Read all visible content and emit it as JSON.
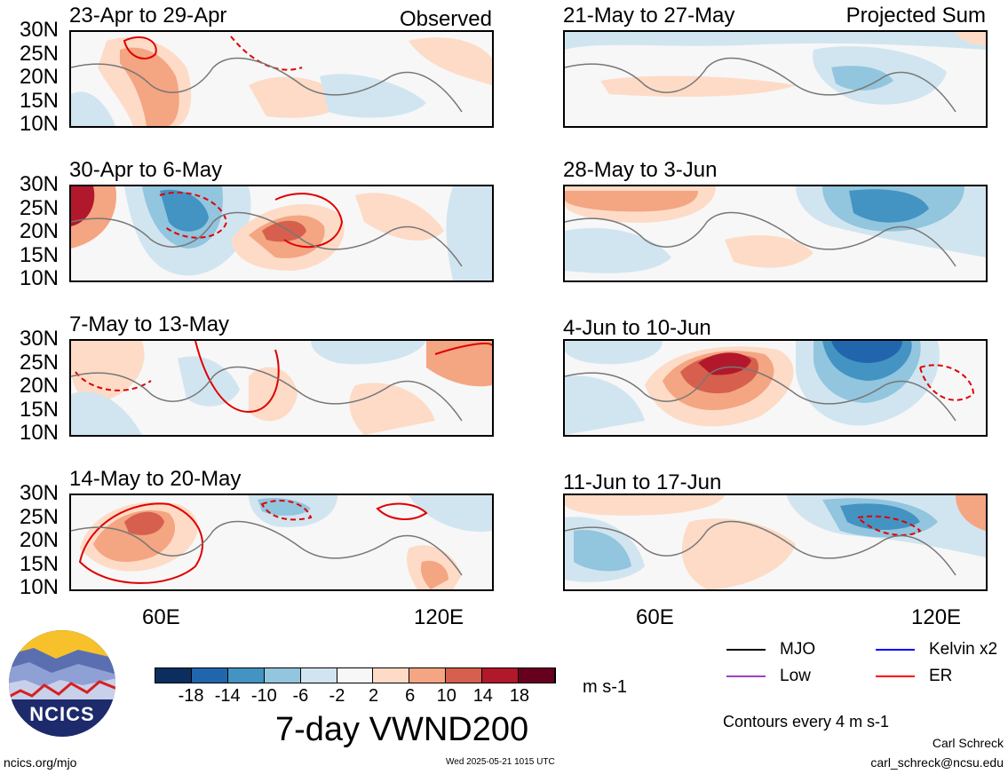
{
  "panels_left": [
    {
      "title": "23-Apr to 29-Apr",
      "tag": "Observed"
    },
    {
      "title": "30-Apr to 6-May",
      "tag": ""
    },
    {
      "title": "7-May to 13-May",
      "tag": ""
    },
    {
      "title": "14-May to 20-May",
      "tag": ""
    }
  ],
  "panels_right": [
    {
      "title": "21-May to 27-May",
      "tag": "Projected Sum"
    },
    {
      "title": "28-May to 3-Jun",
      "tag": ""
    },
    {
      "title": "4-Jun to 10-Jun",
      "tag": ""
    },
    {
      "title": "11-Jun to 17-Jun",
      "tag": ""
    }
  ],
  "lat_labels": [
    "30N",
    "25N",
    "20N",
    "15N",
    "10N"
  ],
  "lon_labels": [
    "60E",
    "120E"
  ],
  "colorbar": {
    "ticks": [
      "-18",
      "-14",
      "-10",
      "-6",
      "-2",
      "2",
      "6",
      "10",
      "14",
      "18"
    ],
    "colors": [
      "#0b2e5f",
      "#2166ac",
      "#4393c3",
      "#92c5de",
      "#d1e5f0",
      "#f7f7f7",
      "#fddbc7",
      "#f4a582",
      "#d6604d",
      "#b2182b",
      "#67001f"
    ],
    "units": "m s-1"
  },
  "figure_title": "7-day VWND200",
  "legend": {
    "items": [
      {
        "label": "MJO",
        "color": "#000000"
      },
      {
        "label": "Kelvin x2",
        "color": "#0000ff"
      },
      {
        "label": "Low",
        "color": "#a040c0"
      },
      {
        "label": "ER",
        "color": "#ff0000"
      }
    ],
    "note": "Contours every 4 m s-1"
  },
  "logo_text": "NCICS",
  "footer": {
    "left": "ncics.org/mjo",
    "center": "Wed 2025-05-21 1015 UTC",
    "author": "Carl Schreck",
    "email": "carl_schreck@ncsu.edu"
  }
}
